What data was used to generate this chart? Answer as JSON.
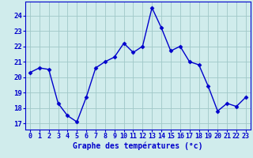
{
  "hours": [
    0,
    1,
    2,
    3,
    4,
    5,
    6,
    7,
    8,
    9,
    10,
    11,
    12,
    13,
    14,
    15,
    16,
    17,
    18,
    19,
    20,
    21,
    22,
    23
  ],
  "temperatures": [
    20.3,
    20.6,
    20.5,
    18.3,
    17.5,
    17.1,
    18.7,
    20.6,
    21.0,
    21.3,
    22.2,
    21.6,
    22.0,
    24.5,
    23.2,
    21.7,
    22.0,
    21.0,
    20.8,
    19.4,
    17.8,
    18.3,
    18.1,
    18.7
  ],
  "line_color": "#0000cc",
  "marker": "D",
  "marker_size": 2.5,
  "line_width": 1.0,
  "bg_color": "#d0ecec",
  "grid_color": "#a0c8c8",
  "tick_color": "#0000cc",
  "xlabel": "Graphe des températures (°c)",
  "xlabel_fontsize": 7,
  "ylabel_ticks": [
    17,
    18,
    19,
    20,
    21,
    22,
    23,
    24
  ],
  "xlim_min": -0.5,
  "xlim_max": 23.5,
  "ylim_min": 16.6,
  "ylim_max": 24.9,
  "tick_fontsize": 6,
  "ytick_fontsize": 6.5
}
